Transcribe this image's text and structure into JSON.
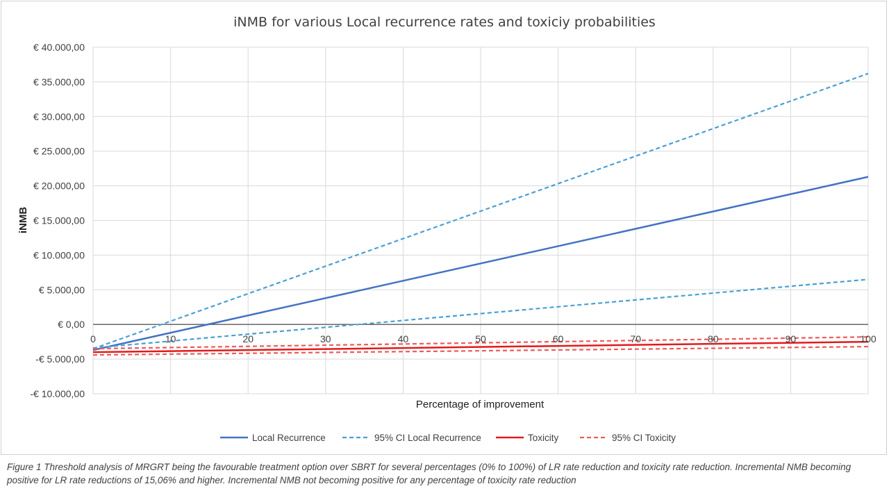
{
  "chart_data": {
    "type": "line",
    "title": "iNMB for various Local recurrence rates and toxiciy probabilities",
    "xlabel": "Percentage of improvement",
    "ylabel": "iNMB",
    "xlim": [
      0,
      100
    ],
    "ylim": [
      -10000,
      40000
    ],
    "x_ticks": [
      "0",
      "10",
      "20",
      "30",
      "40",
      "50",
      "60",
      "70",
      "80",
      "90",
      "100"
    ],
    "y_ticks": [
      {
        "value": 40000,
        "label": "€ 40.000,00"
      },
      {
        "value": 35000,
        "label": "€ 35.000,00"
      },
      {
        "value": 30000,
        "label": "€ 30.000,00"
      },
      {
        "value": 25000,
        "label": "€ 25.000,00"
      },
      {
        "value": 20000,
        "label": "€ 20.000,00"
      },
      {
        "value": 15000,
        "label": "€ 15.000,00"
      },
      {
        "value": 10000,
        "label": "€ 10.000,00"
      },
      {
        "value": 5000,
        "label": "€ 5.000,00"
      },
      {
        "value": 0,
        "label": "€ 0,00"
      },
      {
        "value": -5000,
        "label": "-€ 5.000,00"
      },
      {
        "value": -10000,
        "label": "-€ 10.000,00"
      }
    ],
    "grid": true,
    "legend_position": "bottom",
    "series": [
      {
        "name": "Local Recurrence",
        "color": "#4472c4",
        "style": "solid",
        "x": [
          0,
          100
        ],
        "y": [
          -3700,
          21300
        ]
      },
      {
        "name": "95% CI Local Recurrence",
        "color": "#4a9fd4",
        "style": "dashed",
        "x": [
          0,
          100
        ],
        "y": [
          -3500,
          36200
        ]
      },
      {
        "name": "95% CI Local Recurrence",
        "color": "#4a9fd4",
        "style": "dashed",
        "x": [
          0,
          20,
          100
        ],
        "y": [
          -3400,
          -1400,
          6500
        ],
        "in_legend": false
      },
      {
        "name": "Toxicity",
        "color": "#e01b1b",
        "style": "solid",
        "x": [
          0,
          100
        ],
        "y": [
          -4000,
          -2500
        ]
      },
      {
        "name": "95% CI Toxicity",
        "color": "#ec5b5b",
        "style": "dashed",
        "x": [
          0,
          100
        ],
        "y": [
          -3500,
          -1800
        ]
      },
      {
        "name": "95% CI Toxicity",
        "color": "#ec5b5b",
        "style": "dashed",
        "x": [
          0,
          100
        ],
        "y": [
          -4400,
          -3200
        ],
        "in_legend": false
      }
    ]
  },
  "caption": "Figure 1 Threshold analysis of MRGRT being the favourable treatment option over SBRT for several percentages (0% to 100%) of LR rate reduction and toxicity rate reduction. Incremental NMB becoming positive for LR rate reductions of 15,06% and higher. Incremental NMB not becoming positive for any percentage of toxicity rate reduction"
}
